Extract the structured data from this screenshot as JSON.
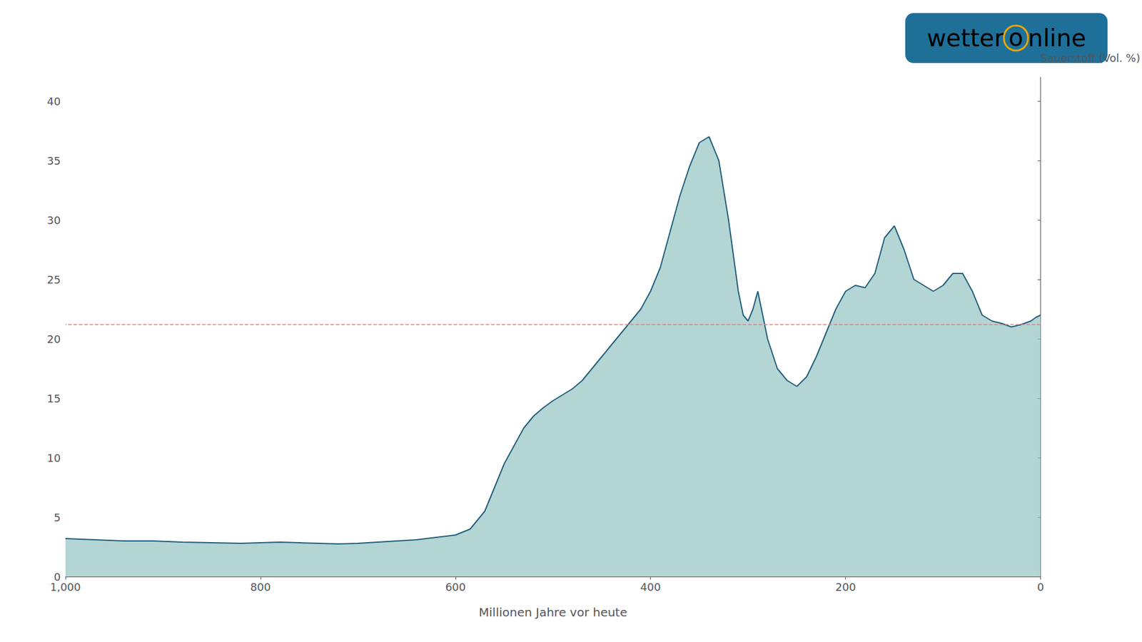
{
  "chart_data": {
    "type": "area",
    "xlabel": "Millionen Jahre vor heute",
    "ylabel": "Sauerstoff (Vol. %)",
    "x": [
      1000,
      970,
      940,
      910,
      880,
      850,
      820,
      800,
      780,
      760,
      740,
      720,
      700,
      680,
      660,
      640,
      620,
      600,
      585,
      570,
      560,
      550,
      540,
      530,
      520,
      510,
      500,
      490,
      480,
      470,
      460,
      450,
      440,
      430,
      420,
      410,
      400,
      390,
      380,
      370,
      360,
      350,
      340,
      330,
      320,
      310,
      305,
      300,
      295,
      290,
      285,
      280,
      270,
      260,
      250,
      240,
      230,
      220,
      210,
      200,
      190,
      180,
      170,
      160,
      150,
      140,
      130,
      120,
      110,
      100,
      90,
      80,
      70,
      60,
      50,
      40,
      30,
      20,
      10,
      5,
      0
    ],
    "values": [
      3.2,
      3.1,
      3.0,
      3.0,
      2.9,
      2.85,
      2.8,
      2.85,
      2.9,
      2.85,
      2.8,
      2.75,
      2.8,
      2.9,
      3.0,
      3.1,
      3.3,
      3.5,
      4.0,
      5.5,
      7.5,
      9.5,
      11.0,
      12.5,
      13.5,
      14.2,
      14.8,
      15.3,
      15.8,
      16.5,
      17.5,
      18.5,
      19.5,
      20.5,
      21.5,
      22.5,
      24.0,
      26.0,
      29.0,
      32.0,
      34.5,
      36.5,
      37.0,
      35.0,
      30.0,
      24.0,
      22.0,
      21.5,
      22.5,
      24.0,
      22.0,
      20.0,
      17.5,
      16.5,
      16.0,
      16.8,
      18.5,
      20.5,
      22.5,
      24.0,
      24.5,
      24.3,
      25.5,
      28.5,
      29.5,
      27.5,
      25.0,
      24.5,
      24.0,
      24.5,
      25.5,
      25.5,
      24.0,
      22.0,
      21.5,
      21.3,
      21.0,
      21.2,
      21.5,
      21.8,
      22.0
    ],
    "color": "#1e5c7a",
    "fill_color": "#8abfbc",
    "xlim": [
      1000,
      0
    ],
    "xticks": [
      1000,
      800,
      600,
      400,
      200,
      0
    ],
    "ylim": [
      0,
      42
    ],
    "yticks": [
      0,
      5,
      10,
      15,
      20,
      25,
      30,
      35,
      40
    ],
    "grid": false,
    "reference_line": {
      "y": 21.2,
      "color": "#e08080",
      "line_style": "dashed"
    },
    "annotations": [
      {
        "parts": [
          {
            "text": "wetter",
            "color": "#ffffff"
          },
          {
            "text": "o",
            "color": "#f0a500"
          },
          {
            "text": "nline",
            "color": "#ffffff"
          }
        ],
        "background": "#1f7099"
      }
    ]
  }
}
